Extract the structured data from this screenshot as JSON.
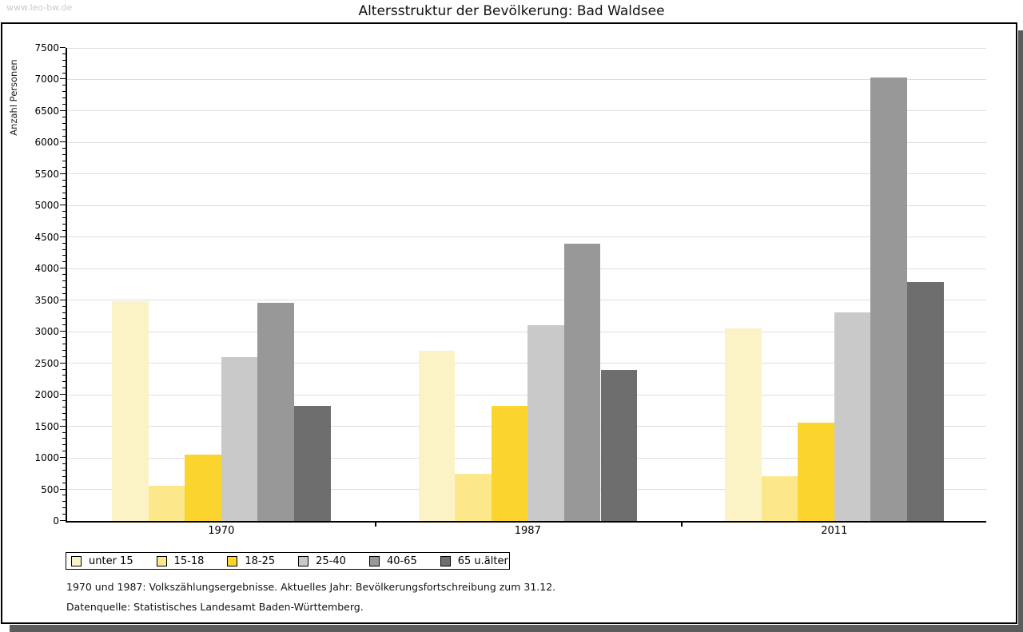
{
  "watermark": "www.leo-bw.de",
  "title": "Altersstruktur der Bevölkerung: Bad Waldsee",
  "footnotes": [
    "1970 und 1987: Volkszählungsergebnisse. Aktuelles Jahr: Bevölkerungsfortschreibung zum 31.12.",
    "Datenquelle: Statistisches Landesamt Baden-Württemberg."
  ],
  "chart_data": {
    "type": "bar",
    "title": "Altersstruktur der Bevölkerung: Bad Waldsee",
    "categories": [
      "1970",
      "1987",
      "2011"
    ],
    "series": [
      {
        "name": "unter 15",
        "color": "#fbf3c6",
        "values": [
          3490,
          2700,
          3050
        ]
      },
      {
        "name": "15-18",
        "color": "#fce88b",
        "values": [
          560,
          750,
          710
        ]
      },
      {
        "name": "18-25",
        "color": "#fcd42e",
        "values": [
          1050,
          1830,
          1560
        ]
      },
      {
        "name": "25-40",
        "color": "#c9c9c9",
        "values": [
          2600,
          3110,
          3310
        ]
      },
      {
        "name": "40-65",
        "color": "#989898",
        "values": [
          3460,
          4400,
          7030
        ]
      },
      {
        "name": "65 u.älter",
        "color": "#6e6e6e",
        "values": [
          1830,
          2390,
          3790
        ]
      }
    ],
    "xlabel": "",
    "ylabel": "Anzahl Personen",
    "ylim": [
      0,
      7500
    ],
    "ytick_step": 500,
    "minor_tick_step": 100,
    "grid": "horizontal",
    "legend_position": "bottom-left",
    "colors": {
      "gridline": "#dedede",
      "axis": "#000000",
      "watermark": "#c9c9c9",
      "frame_shadow": "#5c5c5c"
    }
  }
}
